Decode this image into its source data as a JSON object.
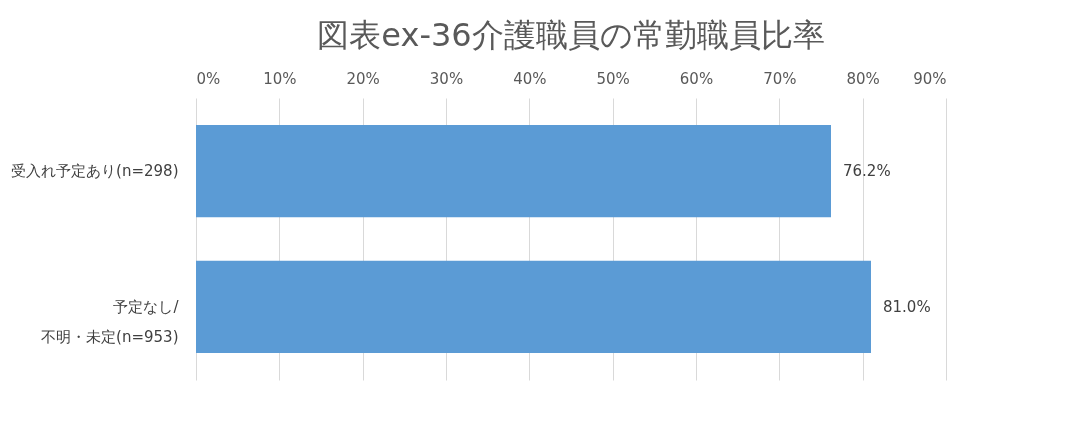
{
  "chart_data": {
    "type": "bar",
    "orientation": "horizontal",
    "title": "図表ex-36介護職員の常勤職員比率",
    "categories": [
      "受入れ予定あり(n=298)",
      "予定なし/\n不明・未定(n=953)"
    ],
    "values": [
      76.2,
      81.0
    ],
    "color": "#5b9bd5",
    "value_labels": [
      "76.2%",
      "81.0%"
    ],
    "xlim": [
      0,
      90
    ],
    "xticks": [
      {
        "value": 0,
        "label": "0%"
      },
      {
        "value": 10,
        "label": "10%"
      },
      {
        "value": 20,
        "label": "20%"
      },
      {
        "value": 30,
        "label": "30%"
      },
      {
        "value": 40,
        "label": "40%"
      },
      {
        "value": 50,
        "label": "50%"
      },
      {
        "value": 60,
        "label": "60%"
      },
      {
        "value": 70,
        "label": "70%"
      },
      {
        "value": 80,
        "label": "80%"
      },
      {
        "value": 90,
        "label": "90%"
      }
    ],
    "grid": "x"
  }
}
